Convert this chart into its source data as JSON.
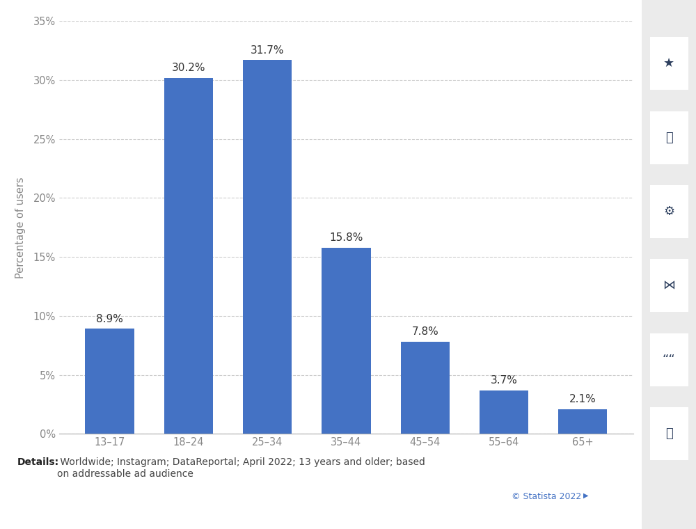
{
  "categories": [
    "13–17",
    "18–24",
    "25–34",
    "35–44",
    "45–54",
    "55–64",
    "65+"
  ],
  "values": [
    8.9,
    30.2,
    31.7,
    15.8,
    7.8,
    3.7,
    2.1
  ],
  "bar_color": "#4472C4",
  "ylabel": "Percentage of users",
  "ylim": [
    0,
    35
  ],
  "yticks": [
    0,
    5,
    10,
    15,
    20,
    25,
    30,
    35
  ],
  "ytick_labels": [
    "0%",
    "5%",
    "10%",
    "15%",
    "20%",
    "25%",
    "30%",
    "35%"
  ],
  "background_color": "#ffffff",
  "plot_bg_color": "#ffffff",
  "grid_color": "#cccccc",
  "label_fontsize": 10.5,
  "tick_fontsize": 10.5,
  "bar_label_fontsize": 11,
  "details_bold": "Details:",
  "details_rest": " Worldwide; Instagram; DataReportal; April 2022; 13 years and older; based\non addressable ad audience",
  "statista_text": "© Statista 2022",
  "sidebar_bg": "#ebebeb",
  "sidebar_btn_bg": "#ffffff",
  "icon_color": "#2d3f5e"
}
